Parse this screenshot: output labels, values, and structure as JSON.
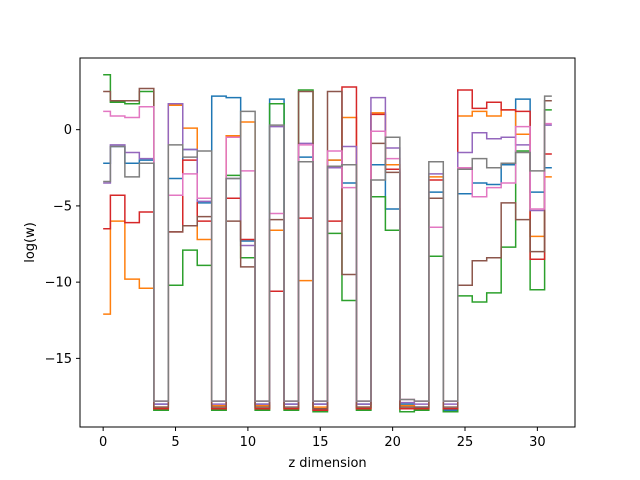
{
  "chart_data": {
    "type": "line",
    "drawstyle": "steps-mid",
    "title": "",
    "xlabel": "z dimension",
    "ylabel": "log(w)",
    "xlim": [
      -1.6,
      32.6
    ],
    "ylim": [
      -19.5,
      4.7
    ],
    "xticks": [
      0,
      5,
      10,
      15,
      20,
      25,
      30
    ],
    "xtick_labels": [
      "0",
      "5",
      "10",
      "15",
      "20",
      "25",
      "30"
    ],
    "yticks": [
      0,
      -5,
      -10,
      -15
    ],
    "ytick_labels": [
      "0",
      "−5",
      "−10",
      "−15"
    ],
    "grid": false,
    "legend": "none",
    "x": [
      0,
      1,
      2,
      3,
      4,
      5,
      6,
      7,
      8,
      9,
      10,
      11,
      12,
      13,
      14,
      15,
      16,
      17,
      18,
      19,
      20,
      21,
      22,
      23,
      24,
      25,
      26,
      27,
      28,
      29,
      30,
      31
    ],
    "series": [
      {
        "color": "#1f77b4",
        "values": [
          -2.2,
          -1.1,
          -2.2,
          -2.0,
          -18.0,
          -3.2,
          -1.3,
          -4.8,
          2.2,
          2.1,
          -7.3,
          -18.0,
          2.0,
          -18.0,
          -1.8,
          -18.0,
          -2.0,
          -3.5,
          -18.0,
          -2.3,
          -5.2,
          -18.0,
          -18.2,
          -4.1,
          -18.4,
          -4.2,
          -3.5,
          -3.6,
          -2.3,
          2.0,
          -4.1,
          -2.5
        ]
      },
      {
        "color": "#ff7f0e",
        "values": [
          -12.1,
          -6.0,
          -9.8,
          -10.4,
          -18.2,
          1.6,
          0.1,
          -7.2,
          -18.1,
          -0.4,
          0.5,
          -18.1,
          -6.6,
          -18.3,
          -9.9,
          -18.2,
          -2.0,
          0.8,
          -18.2,
          1.1,
          -2.3,
          -18.1,
          -18.3,
          -3.1,
          -18.3,
          0.9,
          1.2,
          0.9,
          1.3,
          -0.3,
          -7.0,
          -3.1
        ]
      },
      {
        "color": "#2ca02c",
        "values": [
          3.6,
          1.8,
          1.7,
          2.5,
          -18.4,
          -10.2,
          -7.9,
          -8.9,
          -18.4,
          -3.0,
          -8.4,
          -18.4,
          1.7,
          -18.4,
          2.6,
          -18.5,
          -6.8,
          -11.2,
          -18.4,
          -4.4,
          -6.6,
          -18.5,
          -18.4,
          -8.3,
          -18.5,
          -10.9,
          -11.3,
          -10.7,
          -7.7,
          -1.4,
          -10.5,
          1.3
        ]
      },
      {
        "color": "#d62728",
        "values": [
          -6.5,
          -4.3,
          -6.1,
          -5.4,
          -18.3,
          -6.7,
          -2.0,
          -6.0,
          -18.3,
          -4.5,
          -7.2,
          -18.3,
          -10.6,
          -18.3,
          -5.8,
          -18.4,
          -6.0,
          2.8,
          -18.3,
          1.0,
          -2.6,
          -18.3,
          -18.3,
          -3.3,
          -18.3,
          2.6,
          1.4,
          1.8,
          1.3,
          1.2,
          -8.5,
          -1.6
        ]
      },
      {
        "color": "#9467bd",
        "values": [
          -3.5,
          -1.0,
          -1.5,
          -1.9,
          -18.0,
          1.7,
          -1.3,
          -4.7,
          -18.0,
          -3.2,
          -7.6,
          -18.0,
          0.2,
          -18.0,
          -0.9,
          -18.0,
          -2.5,
          -1.1,
          -18.0,
          2.1,
          -1.2,
          -17.9,
          -18.0,
          -2.9,
          -18.0,
          -1.5,
          -0.2,
          -0.6,
          -0.5,
          -1.0,
          -5.3,
          0.3
        ]
      },
      {
        "color": "#8c564b",
        "values": [
          2.5,
          1.9,
          1.9,
          2.7,
          -18.2,
          -6.7,
          -6.3,
          -5.7,
          -18.2,
          -6.0,
          -9.0,
          -18.2,
          -5.9,
          -18.2,
          2.5,
          -18.3,
          2.5,
          -9.5,
          -18.2,
          -0.9,
          -2.8,
          -18.2,
          -18.2,
          -4.5,
          -18.2,
          -10.2,
          -8.6,
          -8.4,
          -4.8,
          -5.9,
          -8.0,
          1.9
        ]
      },
      {
        "color": "#e377c2",
        "values": [
          1.2,
          0.9,
          0.8,
          1.5,
          -17.8,
          -4.3,
          -2.9,
          -4.5,
          -17.8,
          -0.5,
          -2.7,
          -17.8,
          -5.5,
          -17.8,
          -1.0,
          -17.8,
          -1.4,
          -3.8,
          -17.8,
          -0.1,
          -1.9,
          -17.7,
          -17.8,
          -6.4,
          -17.8,
          -2.5,
          -4.4,
          -3.8,
          -3.5,
          0.2,
          -5.2,
          0.4
        ]
      },
      {
        "color": "#7f7f7f",
        "values": [
          -3.4,
          -1.1,
          -3.1,
          -2.2,
          -17.8,
          -1.0,
          -1.8,
          -1.4,
          -17.8,
          -3.2,
          1.2,
          -17.8,
          0.3,
          -17.8,
          -2.1,
          -17.8,
          -2.4,
          -2.3,
          -17.8,
          -3.3,
          -0.5,
          -17.7,
          -17.8,
          -2.1,
          -17.8,
          -2.6,
          -1.9,
          -2.5,
          -2.2,
          -1.5,
          -2.7,
          2.2
        ]
      }
    ]
  }
}
